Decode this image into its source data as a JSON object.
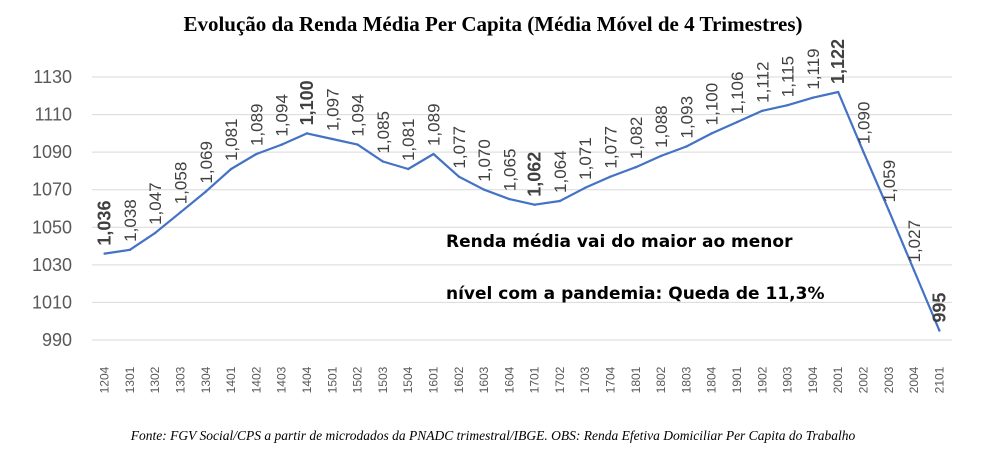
{
  "chart_data": {
    "type": "line",
    "title": "Evolução da Renda Média Per Capita (Média Móvel de 4 Trimestres)",
    "categories": [
      "1204",
      "1301",
      "1302",
      "1303",
      "1304",
      "1401",
      "1402",
      "1403",
      "1404",
      "1501",
      "1502",
      "1503",
      "1504",
      "1601",
      "1602",
      "1603",
      "1604",
      "1701",
      "1702",
      "1703",
      "1704",
      "1801",
      "1802",
      "1803",
      "1804",
      "1901",
      "1902",
      "1903",
      "1904",
      "2001",
      "2002",
      "2003",
      "2004",
      "2101"
    ],
    "series": [
      {
        "values": [
          1036,
          1038,
          1047,
          1058,
          1069,
          1081,
          1089,
          1094,
          1100,
          1097,
          1094,
          1085,
          1081,
          1089,
          1077,
          1070,
          1065,
          1062,
          1064,
          1071,
          1077,
          1082,
          1088,
          1093,
          1100,
          1106,
          1112,
          1115,
          1119,
          1122,
          1090,
          1059,
          1027,
          995
        ]
      }
    ],
    "data_labels": [
      "1,036",
      "1,038",
      "1,047",
      "1,058",
      "1,069",
      "1,081",
      "1,089",
      "1,094",
      "1,100",
      "1,097",
      "1,094",
      "1,085",
      "1,081",
      "1,089",
      "1,077",
      "1,070",
      "1,065",
      "1,062",
      "1,064",
      "1,071",
      "1,077",
      "1,082",
      "1,088",
      "1,093",
      "1,100",
      "1,106",
      "1,112",
      "1,115",
      "1,119",
      "1,122",
      "1,090",
      "1,059",
      "1,027",
      "995"
    ],
    "bold_labels": [
      0,
      8,
      17,
      29,
      33
    ],
    "y_ticks": [
      "1130",
      "1110",
      "1090",
      "1070",
      "1050",
      "1030",
      "1010",
      "990"
    ],
    "ylim": [
      990,
      1130
    ],
    "grid": true,
    "line_color": "#4472c4",
    "grid_color": "#d9d9d9"
  },
  "annotation": {
    "line1": "Renda média vai do maior ao menor",
    "line2": "nível com a pandemia: Queda de 11,3%"
  },
  "source_note": "Fonte: FGV Social/CPS a partir de microdados da PNADC trimestral/IBGE. OBS: Renda Efetiva Domiciliar Per Capita do Trabalho"
}
